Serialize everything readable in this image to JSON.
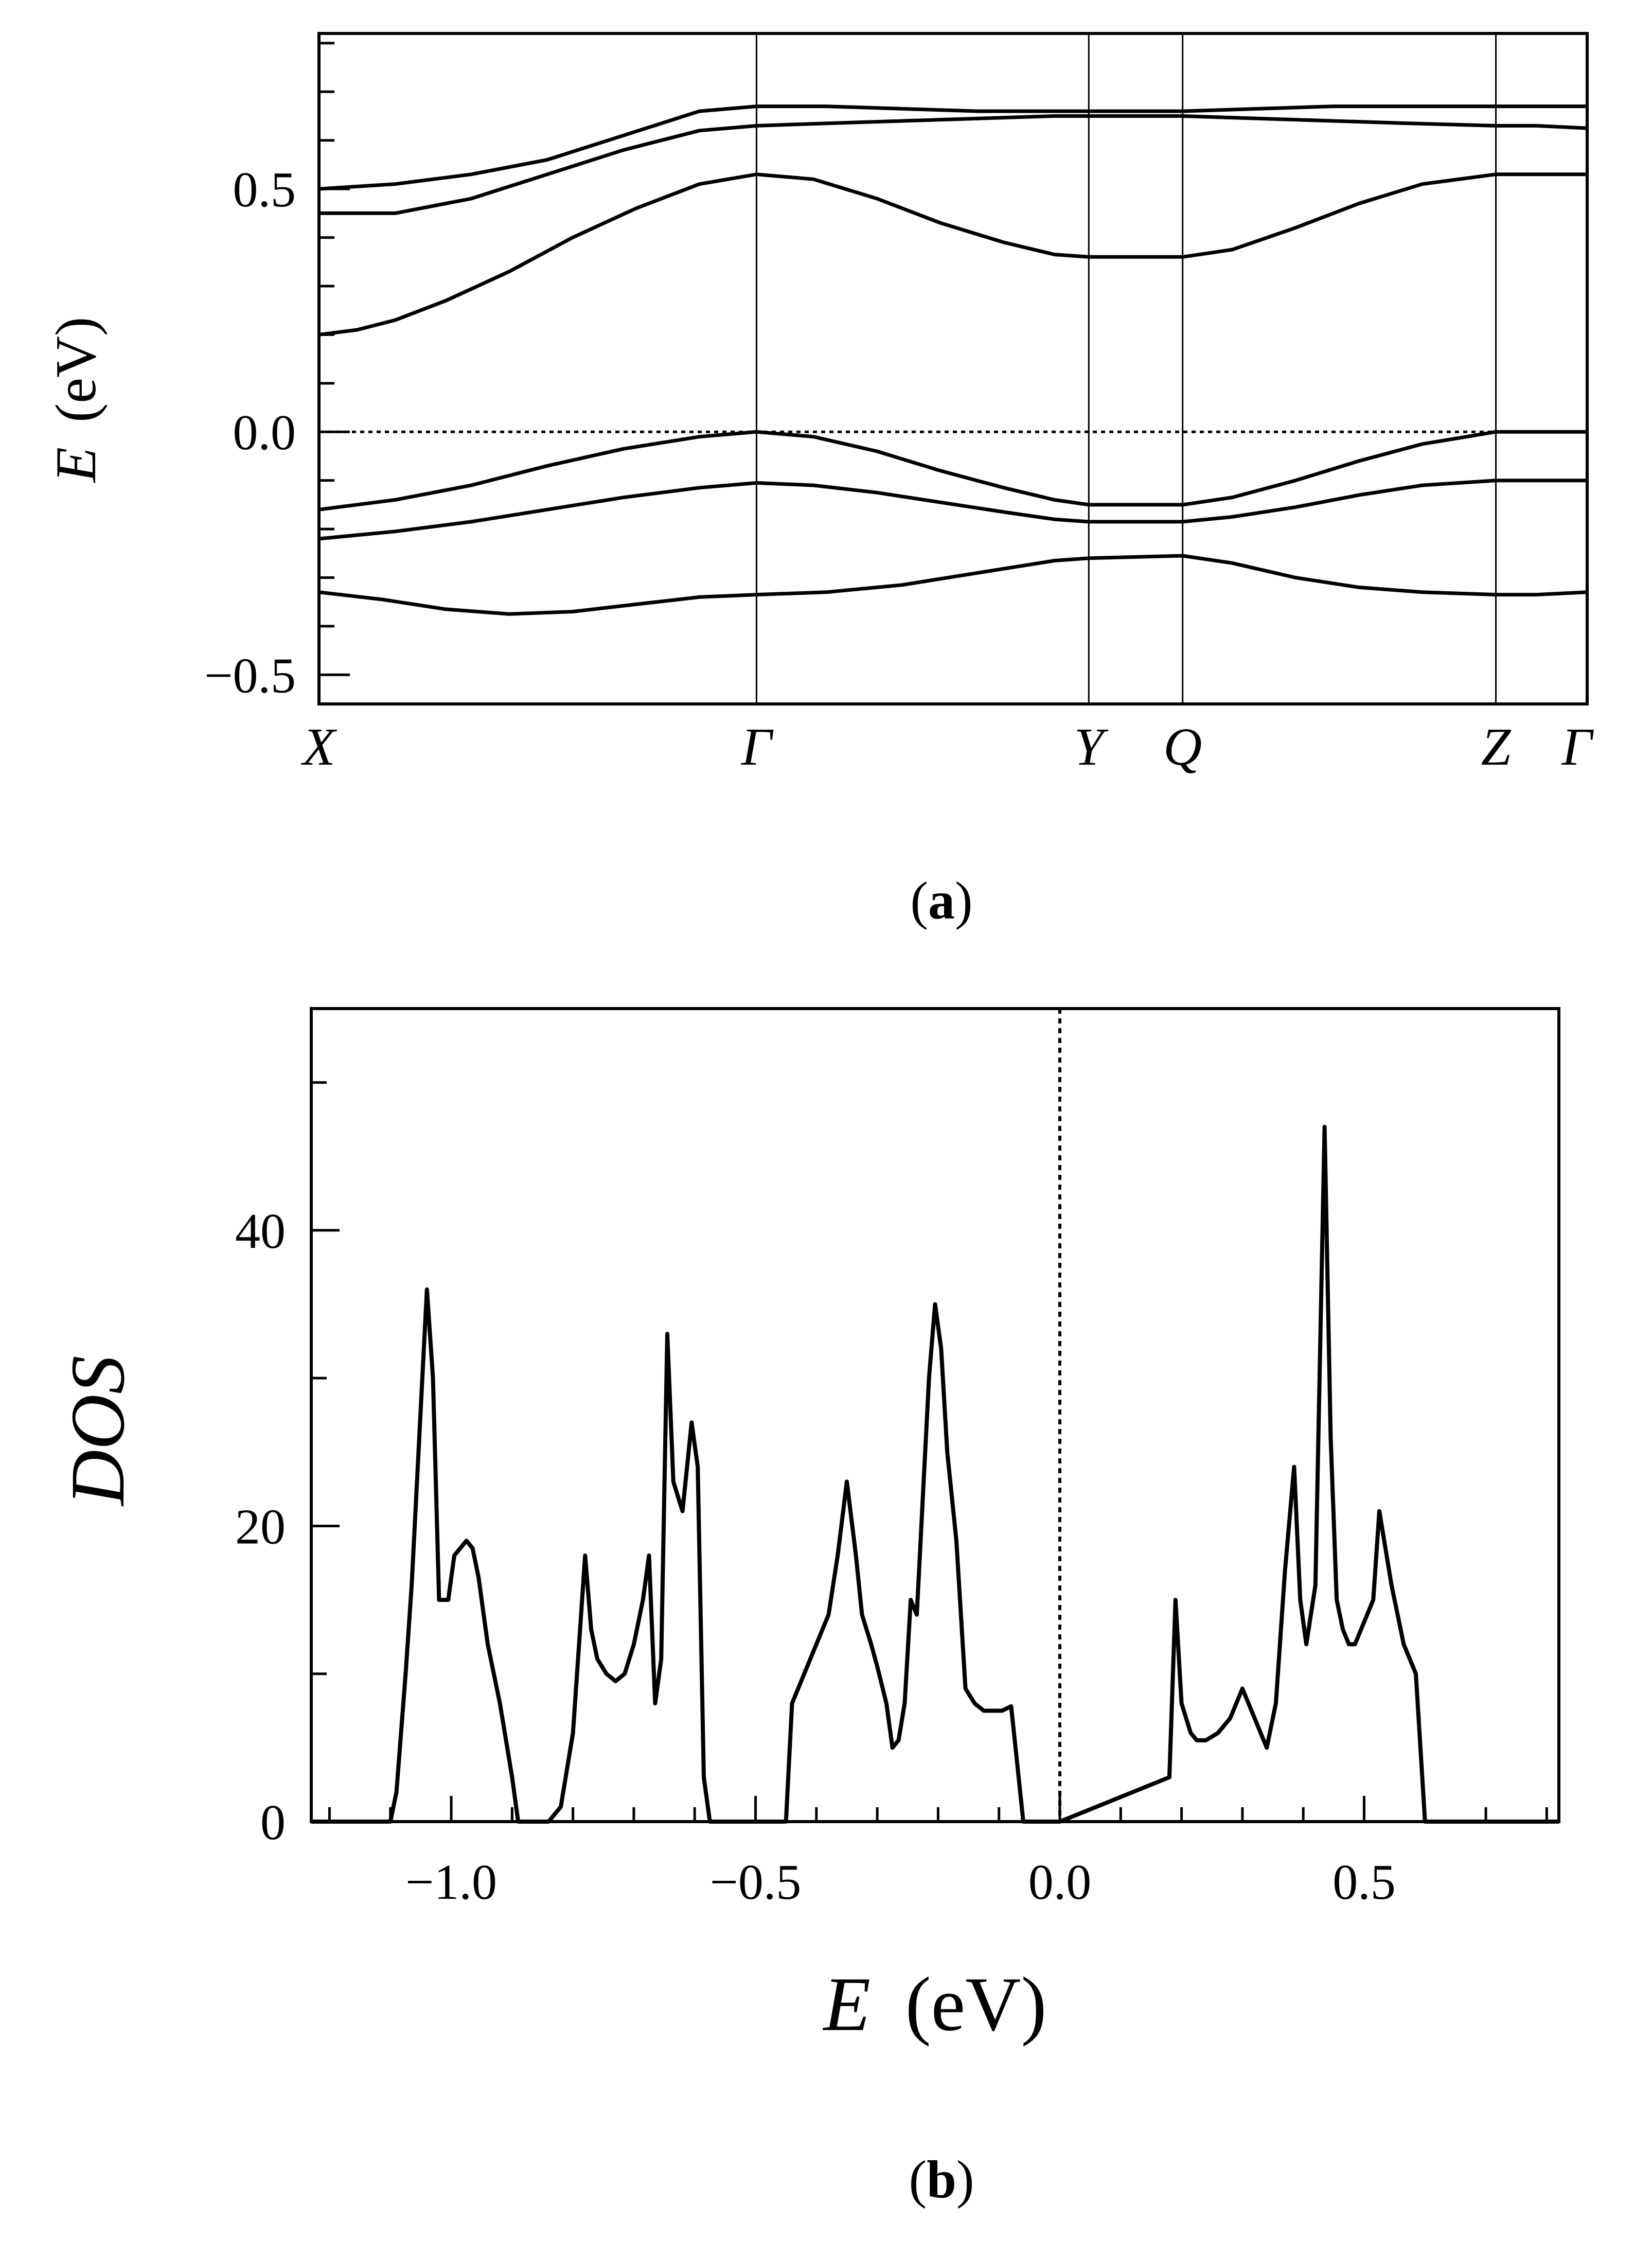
{
  "figure": {
    "panels": [
      "a",
      "b"
    ]
  },
  "chart_data": [
    {
      "id": "a",
      "type": "line",
      "caption": "a",
      "ylabel_italic": "E",
      "ylabel_unit": "(eV)",
      "ylim": [
        -0.56,
        0.82
      ],
      "yticks": [
        {
          "value": 0.5,
          "label": "0.5"
        },
        {
          "value": 0.0,
          "label": "0.0"
        },
        {
          "value": -0.5,
          "label": "−0.5"
        }
      ],
      "yminor_step": 0.1,
      "fermi_level": 0.0,
      "xlim": [
        0,
        1000
      ],
      "kpoints": [
        {
          "label": "X",
          "pos": 0
        },
        {
          "label": "Γ",
          "pos": 345
        },
        {
          "label": "Y",
          "pos": 607
        },
        {
          "label": "Q",
          "pos": 681
        },
        {
          "label": "Z",
          "pos": 928
        },
        {
          "label": "Γ",
          "pos": 1000
        }
      ],
      "series": [
        {
          "x": [
            0,
            60,
            120,
            180,
            240,
            300,
            345,
            400,
            460,
            520,
            580,
            607,
            681,
            740,
            800,
            860,
            928,
            960,
            1000
          ],
          "y": [
            0.5,
            0.51,
            0.53,
            0.56,
            0.61,
            0.66,
            0.67,
            0.67,
            0.665,
            0.66,
            0.66,
            0.66,
            0.66,
            0.665,
            0.67,
            0.67,
            0.67,
            0.67,
            0.67
          ]
        },
        {
          "x": [
            0,
            60,
            120,
            180,
            240,
            300,
            345,
            400,
            460,
            520,
            580,
            607,
            681,
            740,
            800,
            860,
            928,
            960,
            1000
          ],
          "y": [
            0.45,
            0.45,
            0.48,
            0.53,
            0.58,
            0.62,
            0.63,
            0.635,
            0.64,
            0.645,
            0.65,
            0.65,
            0.65,
            0.645,
            0.64,
            0.635,
            0.63,
            0.63,
            0.625
          ]
        },
        {
          "x": [
            0,
            30,
            60,
            100,
            150,
            200,
            250,
            300,
            345,
            390,
            440,
            490,
            540,
            580,
            607,
            681,
            720,
            770,
            820,
            870,
            928,
            960,
            1000
          ],
          "y": [
            0.2,
            0.21,
            0.23,
            0.27,
            0.33,
            0.4,
            0.46,
            0.51,
            0.53,
            0.52,
            0.48,
            0.43,
            0.39,
            0.365,
            0.36,
            0.36,
            0.375,
            0.42,
            0.47,
            0.51,
            0.53,
            0.53,
            0.53
          ]
        },
        {
          "x": [
            0,
            60,
            120,
            180,
            240,
            300,
            345,
            390,
            440,
            490,
            540,
            580,
            607,
            681,
            720,
            770,
            820,
            870,
            928,
            960,
            1000
          ],
          "y": [
            -0.16,
            -0.14,
            -0.11,
            -0.07,
            -0.035,
            -0.01,
            0.0,
            -0.01,
            -0.04,
            -0.08,
            -0.115,
            -0.14,
            -0.15,
            -0.15,
            -0.135,
            -0.1,
            -0.06,
            -0.025,
            0.0,
            0.0,
            0.0
          ]
        },
        {
          "x": [
            0,
            60,
            120,
            180,
            240,
            300,
            345,
            390,
            440,
            490,
            540,
            580,
            607,
            681,
            720,
            770,
            820,
            870,
            928,
            960,
            1000
          ],
          "y": [
            -0.22,
            -0.205,
            -0.185,
            -0.16,
            -0.135,
            -0.115,
            -0.105,
            -0.11,
            -0.125,
            -0.145,
            -0.165,
            -0.18,
            -0.185,
            -0.185,
            -0.175,
            -0.155,
            -0.13,
            -0.11,
            -0.1,
            -0.1,
            -0.1
          ]
        },
        {
          "x": [
            0,
            50,
            100,
            150,
            200,
            250,
            300,
            345,
            400,
            460,
            520,
            580,
            607,
            681,
            720,
            770,
            820,
            870,
            928,
            960,
            1000
          ],
          "y": [
            -0.33,
            -0.345,
            -0.365,
            -0.375,
            -0.37,
            -0.355,
            -0.34,
            -0.335,
            -0.33,
            -0.315,
            -0.29,
            -0.265,
            -0.26,
            -0.255,
            -0.27,
            -0.3,
            -0.32,
            -0.33,
            -0.335,
            -0.335,
            -0.33
          ]
        }
      ]
    },
    {
      "id": "b",
      "type": "line",
      "caption": "b",
      "ylabel": "DOS",
      "xlabel_italic": "E",
      "xlabel_unit": "(eV)",
      "xlim": [
        -1.23,
        0.82
      ],
      "ylim": [
        0,
        55
      ],
      "xticks": [
        {
          "value": -1.0,
          "label": "−1.0"
        },
        {
          "value": -0.5,
          "label": "−0.5"
        },
        {
          "value": 0.0,
          "label": "0.0"
        },
        {
          "value": 0.5,
          "label": "0.5"
        }
      ],
      "xminor_step": 0.1,
      "yticks": [
        {
          "value": 0,
          "label": "0"
        },
        {
          "value": 20,
          "label": "20"
        },
        {
          "value": 40,
          "label": "40"
        }
      ],
      "yminor_step": 10,
      "fermi_level": 0.0,
      "series": [
        {
          "x": [
            -1.23,
            -1.1,
            -1.09,
            -1.075,
            -1.065,
            -1.05,
            -1.04,
            -1.03,
            -1.02,
            -1.005,
            -0.995,
            -0.985,
            -0.975,
            -0.965,
            -0.955,
            -0.94,
            -0.92,
            -0.9,
            -0.89,
            -0.87,
            -0.855,
            -0.84,
            -0.82,
            -0.8,
            -0.79,
            -0.78,
            -0.77,
            -0.76,
            -0.745,
            -0.73,
            -0.715,
            -0.7,
            -0.685,
            -0.675,
            -0.665,
            -0.655,
            -0.645,
            -0.635,
            -0.62,
            -0.605,
            -0.595,
            -0.585,
            -0.575,
            -0.565,
            -0.555,
            -0.545,
            -0.52,
            -0.47,
            -0.45,
            -0.44,
            -0.42,
            -0.4,
            -0.38,
            -0.365,
            -0.35,
            -0.335,
            -0.325,
            -0.31,
            -0.3,
            -0.285,
            -0.275,
            -0.265,
            -0.255,
            -0.245,
            -0.235,
            -0.225,
            -0.215,
            -0.205,
            -0.195,
            -0.185,
            -0.17,
            -0.155,
            -0.14,
            -0.125,
            -0.11,
            -0.095,
            -0.08,
            -0.06,
            -0.04,
            -0.03,
            -0.02,
            0.0,
            0.18,
            0.19,
            0.2,
            0.215,
            0.225,
            0.24,
            0.26,
            0.28,
            0.3,
            0.32,
            0.34,
            0.355,
            0.37,
            0.385,
            0.395,
            0.405,
            0.42,
            0.435,
            0.445,
            0.455,
            0.465,
            0.475,
            0.485,
            0.495,
            0.505,
            0.515,
            0.525,
            0.545,
            0.565,
            0.585,
            0.6,
            0.61,
            0.62,
            0.635,
            0.645,
            0.655,
            0.665,
            0.82
          ],
          "y": [
            0,
            0,
            2,
            10,
            16,
            28,
            36,
            30,
            15,
            15,
            18,
            18.5,
            19,
            18.5,
            16.5,
            12,
            8,
            3,
            0,
            0,
            0,
            0,
            1,
            6,
            12,
            18,
            13,
            11,
            10,
            9.5,
            10,
            12,
            15,
            18,
            8,
            11,
            33,
            23,
            21,
            27,
            24,
            3,
            0,
            0,
            0,
            0,
            0,
            0,
            0,
            8,
            10,
            12,
            14,
            18,
            23,
            18,
            14,
            12,
            10.5,
            8,
            5,
            5.5,
            8,
            15,
            14,
            22,
            30,
            35,
            32,
            25,
            19,
            9,
            8,
            7.5,
            7.5,
            7.5,
            7.8,
            0,
            0,
            0,
            0,
            0,
            3,
            15,
            8,
            6,
            5.5,
            5.5,
            6,
            7,
            9,
            7,
            5,
            8,
            17,
            24,
            15,
            12,
            16,
            47,
            26,
            15,
            13,
            12,
            12,
            13,
            14,
            15,
            21,
            16,
            12,
            10,
            0,
            0,
            0,
            0,
            0,
            0,
            0,
            0
          ]
        }
      ]
    }
  ]
}
